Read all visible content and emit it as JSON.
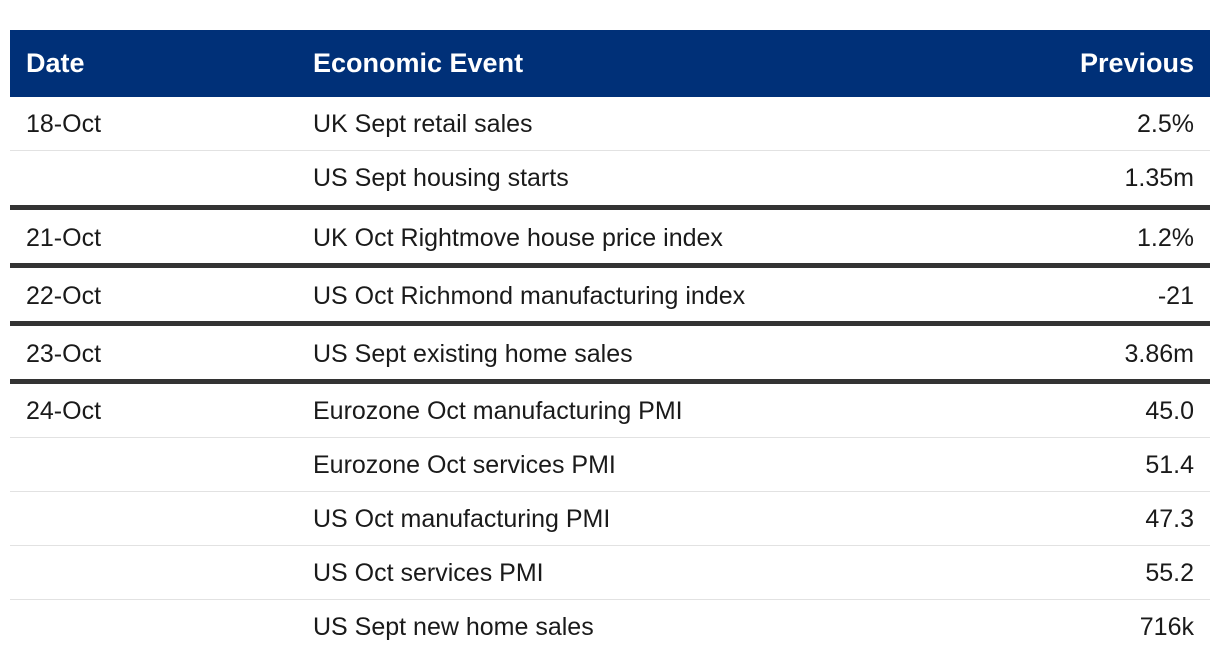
{
  "table": {
    "headers": {
      "date": "Date",
      "event": "Economic Event",
      "previous": "Previous"
    },
    "groups": [
      {
        "date": "18-Oct",
        "rows": [
          {
            "event": "UK Sept retail sales",
            "previous": "2.5%"
          },
          {
            "event": "US Sept housing starts",
            "previous": "1.35m"
          }
        ]
      },
      {
        "date": "21-Oct",
        "rows": [
          {
            "event": "UK Oct Rightmove house price index",
            "previous": "1.2%"
          }
        ]
      },
      {
        "date": "22-Oct",
        "rows": [
          {
            "event": "US Oct Richmond manufacturing index",
            "previous": "-21"
          }
        ]
      },
      {
        "date": "23-Oct",
        "rows": [
          {
            "event": "US Sept existing home sales",
            "previous": "3.86m"
          }
        ]
      },
      {
        "date": "24-Oct",
        "rows": [
          {
            "event": "Eurozone Oct manufacturing PMI",
            "previous": "45.0"
          },
          {
            "event": "Eurozone Oct services PMI",
            "previous": "51.4"
          },
          {
            "event": "US Oct manufacturing PMI",
            "previous": "47.3"
          },
          {
            "event": "US Oct services PMI",
            "previous": "55.2"
          },
          {
            "event": "US Sept new home sales",
            "previous": "716k"
          }
        ]
      }
    ]
  }
}
